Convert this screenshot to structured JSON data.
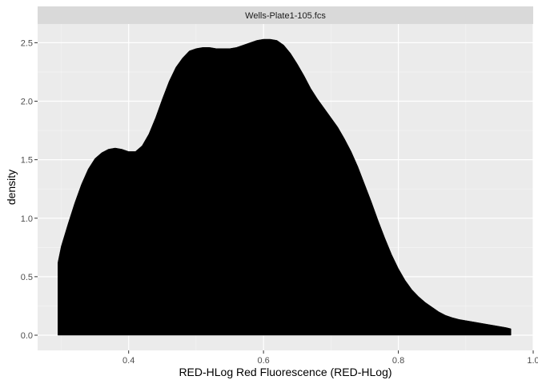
{
  "chart_data": {
    "type": "area",
    "facet_label": "Wells-Plate1-105.fcs",
    "xlabel": "RED-HLog Red Fluorescence (RED-HLog)",
    "ylabel": "density",
    "xlim": [
      0.265,
      1.0
    ],
    "ylim": [
      -0.13,
      2.66
    ],
    "x_ticks": [
      0.4,
      0.6,
      0.8,
      1.0
    ],
    "x_tick_labels": [
      "0.4",
      "0.6",
      "0.8",
      "1.0"
    ],
    "y_ticks": [
      0.0,
      0.5,
      1.0,
      1.5,
      2.0,
      2.5
    ],
    "y_tick_labels": [
      "0.0",
      "0.5",
      "1.0",
      "1.5",
      "2.0",
      "2.5"
    ],
    "grid": true,
    "fill_color": "#000000",
    "panel_background": "#ebebeb",
    "strip_background": "#d9d9d9",
    "series": [
      {
        "x": [
          0.295,
          0.3,
          0.31,
          0.32,
          0.33,
          0.34,
          0.35,
          0.36,
          0.37,
          0.38,
          0.39,
          0.4,
          0.41,
          0.42,
          0.43,
          0.44,
          0.45,
          0.46,
          0.47,
          0.48,
          0.49,
          0.5,
          0.51,
          0.52,
          0.53,
          0.54,
          0.55,
          0.56,
          0.57,
          0.58,
          0.59,
          0.6,
          0.61,
          0.62,
          0.63,
          0.64,
          0.65,
          0.66,
          0.67,
          0.68,
          0.69,
          0.7,
          0.71,
          0.72,
          0.73,
          0.74,
          0.75,
          0.76,
          0.77,
          0.78,
          0.79,
          0.8,
          0.81,
          0.82,
          0.83,
          0.84,
          0.85,
          0.86,
          0.87,
          0.88,
          0.89,
          0.9,
          0.91,
          0.92,
          0.93,
          0.94,
          0.95,
          0.96,
          0.967
        ],
        "y": [
          0.62,
          0.76,
          0.95,
          1.13,
          1.29,
          1.42,
          1.51,
          1.56,
          1.59,
          1.6,
          1.59,
          1.57,
          1.57,
          1.62,
          1.72,
          1.86,
          2.02,
          2.17,
          2.29,
          2.37,
          2.43,
          2.45,
          2.46,
          2.46,
          2.45,
          2.45,
          2.45,
          2.46,
          2.48,
          2.5,
          2.52,
          2.53,
          2.53,
          2.52,
          2.48,
          2.41,
          2.32,
          2.22,
          2.11,
          2.02,
          1.94,
          1.86,
          1.78,
          1.68,
          1.57,
          1.44,
          1.29,
          1.14,
          0.98,
          0.83,
          0.69,
          0.57,
          0.47,
          0.39,
          0.33,
          0.28,
          0.24,
          0.2,
          0.17,
          0.15,
          0.135,
          0.125,
          0.115,
          0.105,
          0.095,
          0.085,
          0.075,
          0.065,
          0.055
        ]
      }
    ]
  }
}
